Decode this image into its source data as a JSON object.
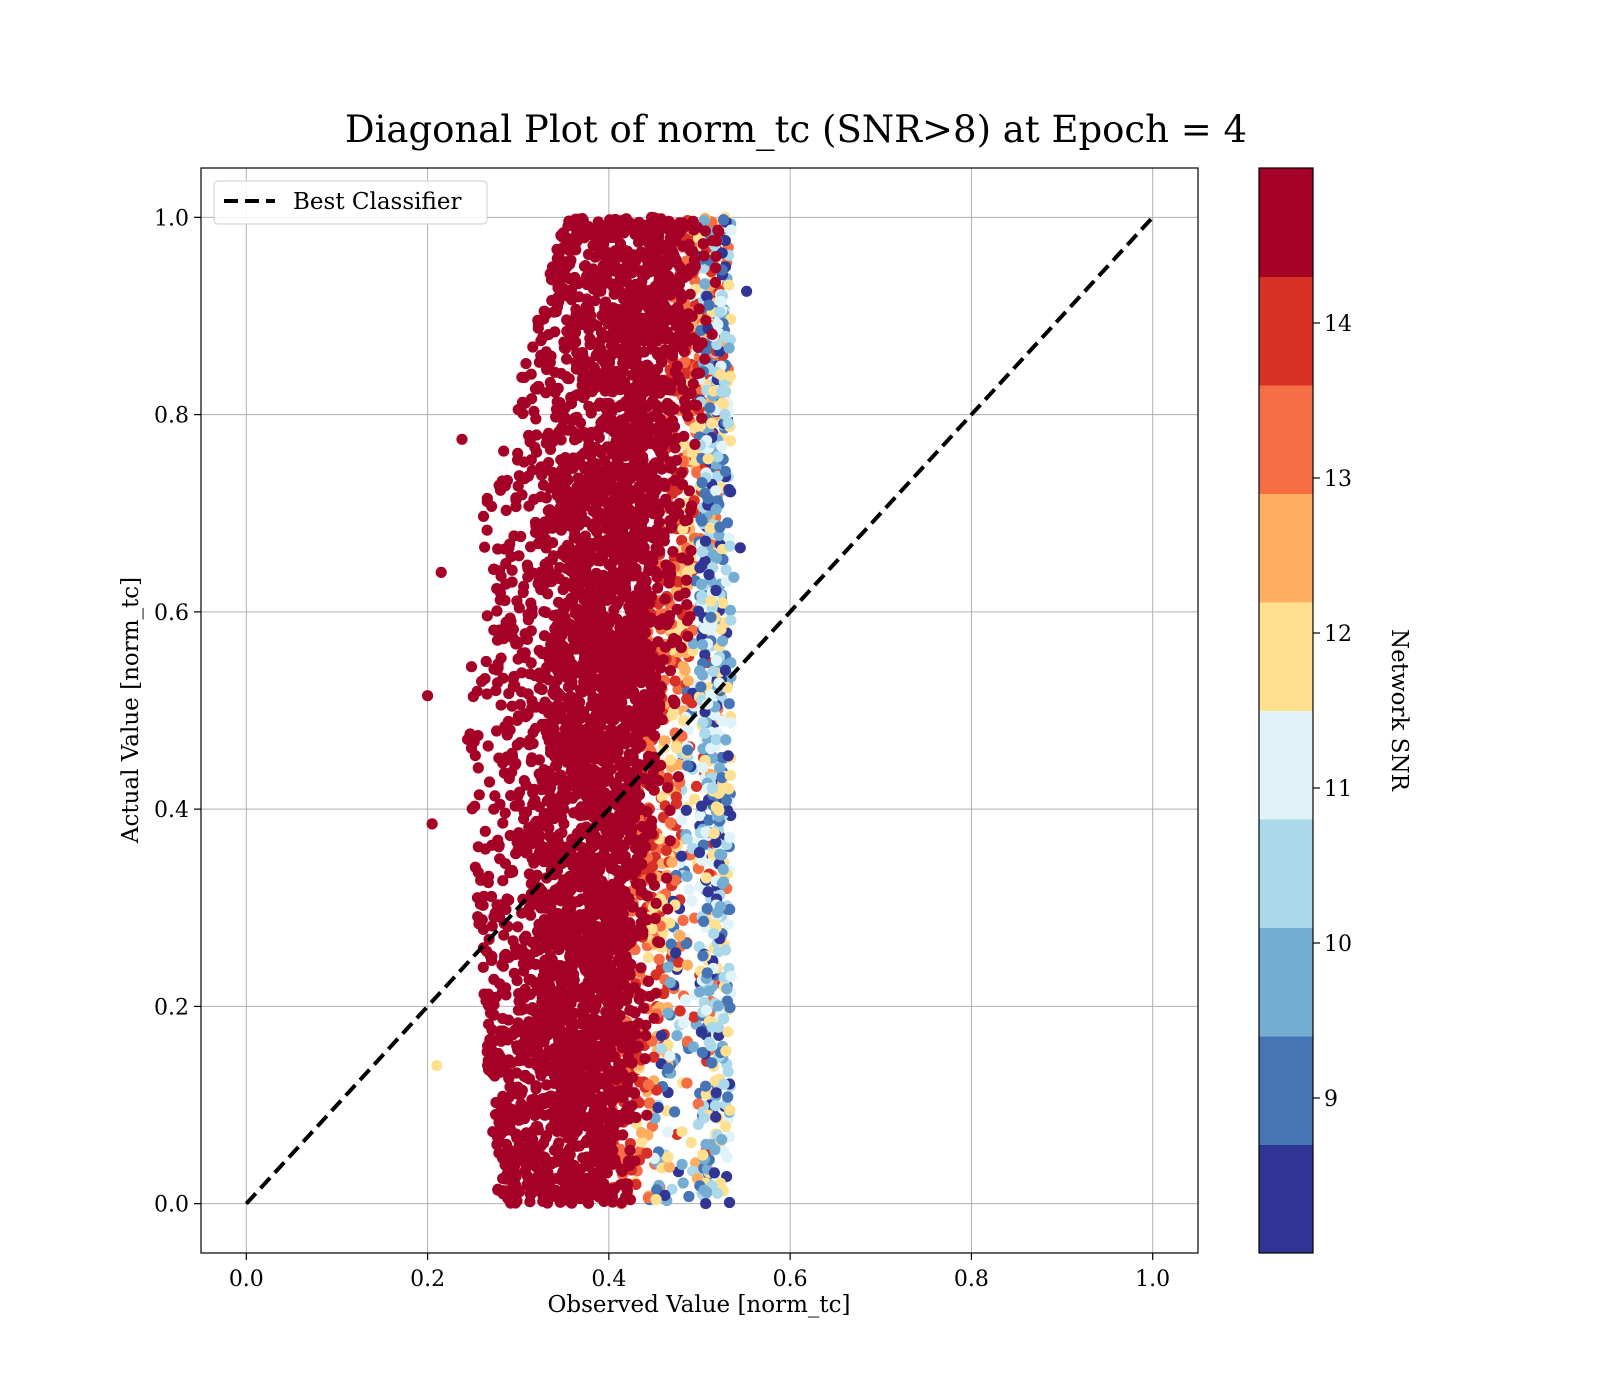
{
  "chart_data": {
    "type": "scatter",
    "title": "Diagonal Plot of norm_tc (SNR>8) at Epoch = 4",
    "xlabel": "Observed Value [norm_tc]",
    "ylabel": "Actual Value [norm_tc]",
    "xlim": [
      -0.05,
      1.05
    ],
    "ylim": [
      -0.05,
      1.05
    ],
    "xticks": [
      "0.0",
      "0.2",
      "0.4",
      "0.6",
      "0.8",
      "1.0"
    ],
    "yticks": [
      "0.0",
      "0.2",
      "0.4",
      "0.6",
      "0.8",
      "1.0"
    ],
    "grid": true,
    "legend": {
      "placement": "top-left",
      "entries": [
        "Best Classifier"
      ]
    },
    "reference_line": {
      "name": "Best Classifier",
      "x": [
        0.0,
        1.0
      ],
      "y": [
        0.0,
        1.0
      ],
      "style": "dashed",
      "color": "#000000"
    },
    "point_cloud": {
      "color_variable": "Network SNR",
      "x_range_observed": [
        0.2,
        0.555
      ],
      "y_range": [
        0.0,
        1.0
      ],
      "x_center_at_y0": 0.36,
      "x_center_at_y1": 0.44,
      "x_spread": 0.06,
      "dominant_color": "#a50026"
    },
    "colorbar": {
      "label": "Network SNR",
      "range": [
        8.0,
        15.0
      ],
      "ticks": [
        "9",
        "10",
        "11",
        "12",
        "13",
        "14"
      ],
      "tick_values": [
        9,
        10,
        11,
        12,
        13,
        14
      ],
      "levels": 10,
      "colors": [
        "#313695",
        "#4575b4",
        "#74add1",
        "#abd9e9",
        "#e0f3f8",
        "#fee090",
        "#fdae61",
        "#f46d43",
        "#d73027",
        "#a50026"
      ]
    }
  }
}
